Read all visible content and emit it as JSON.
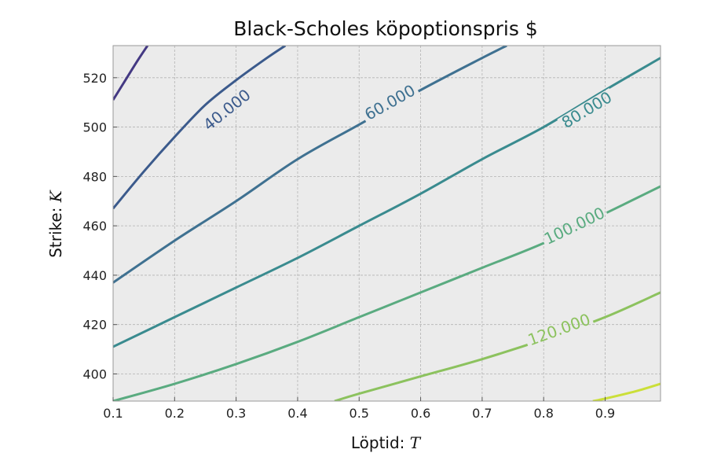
{
  "chart_data": {
    "type": "contour",
    "title": "Black-Scholes köpoptionspris $",
    "xlabel": "Löptid: ",
    "xlabel_var": "T",
    "ylabel": "Strike: ",
    "ylabel_var": "K",
    "xlim": [
      0.1,
      0.99
    ],
    "ylim": [
      389,
      533
    ],
    "xticks": [
      "0.1",
      "0.2",
      "0.3",
      "0.4",
      "0.5",
      "0.6",
      "0.7",
      "0.8",
      "0.9"
    ],
    "yticks": [
      "400",
      "420",
      "440",
      "460",
      "480",
      "500",
      "520"
    ],
    "grid": true,
    "colormap": "viridis",
    "levels": [
      {
        "value": 20,
        "label": "",
        "color": "#443983",
        "points": [
          [
            0.1,
            511
          ],
          [
            0.12,
            519
          ],
          [
            0.14,
            527
          ],
          [
            0.156,
            533
          ]
        ]
      },
      {
        "value": 40,
        "label": "40.000",
        "color": "#3b5a8c",
        "points": [
          [
            0.1,
            467
          ],
          [
            0.15,
            482
          ],
          [
            0.2,
            496
          ],
          [
            0.25,
            509
          ],
          [
            0.3,
            519
          ],
          [
            0.35,
            528
          ],
          [
            0.38,
            533
          ]
        ]
      },
      {
        "value": 60,
        "label": "60.000",
        "color": "#3f7191",
        "points": [
          [
            0.1,
            437
          ],
          [
            0.2,
            454
          ],
          [
            0.3,
            470
          ],
          [
            0.4,
            487
          ],
          [
            0.5,
            501
          ],
          [
            0.6,
            515
          ],
          [
            0.7,
            528
          ],
          [
            0.74,
            533
          ]
        ]
      },
      {
        "value": 80,
        "label": "80.000",
        "color": "#3a8b8f",
        "points": [
          [
            0.1,
            411
          ],
          [
            0.2,
            423
          ],
          [
            0.3,
            435
          ],
          [
            0.4,
            447
          ],
          [
            0.5,
            460
          ],
          [
            0.6,
            473
          ],
          [
            0.7,
            487
          ],
          [
            0.8,
            500
          ],
          [
            0.9,
            515
          ],
          [
            0.99,
            528
          ]
        ]
      },
      {
        "value": 100,
        "label": "100.000",
        "color": "#5aab80",
        "points": [
          [
            0.1,
            389
          ],
          [
            0.2,
            396
          ],
          [
            0.3,
            404
          ],
          [
            0.4,
            413
          ],
          [
            0.5,
            423
          ],
          [
            0.6,
            433
          ],
          [
            0.7,
            443
          ],
          [
            0.8,
            453
          ],
          [
            0.9,
            465
          ],
          [
            0.99,
            476
          ]
        ]
      },
      {
        "value": 120,
        "label": "120.000",
        "color": "#8cc25e",
        "points": [
          [
            0.46,
            389
          ],
          [
            0.5,
            392
          ],
          [
            0.6,
            399
          ],
          [
            0.7,
            406
          ],
          [
            0.8,
            414
          ],
          [
            0.9,
            423
          ],
          [
            0.99,
            433
          ]
        ]
      },
      {
        "value": 140,
        "label": "",
        "color": "#cbdf39",
        "points": [
          [
            0.88,
            389
          ],
          [
            0.9,
            390
          ],
          [
            0.95,
            393
          ],
          [
            0.99,
            396
          ]
        ]
      }
    ],
    "label_positions": [
      {
        "level": "40.000",
        "x": 0.285,
        "y": 507
      },
      {
        "level": "60.000",
        "x": 0.55,
        "y": 510
      },
      {
        "level": "80.000",
        "x": 0.87,
        "y": 507
      },
      {
        "level": "100.000",
        "x": 0.85,
        "y": 460
      },
      {
        "level": "120.000",
        "x": 0.825,
        "y": 418
      }
    ],
    "colors": {
      "background": "#ebebeb",
      "grid": "#b3b3b3",
      "frame": "#999999",
      "figure": "#ffffff"
    }
  }
}
